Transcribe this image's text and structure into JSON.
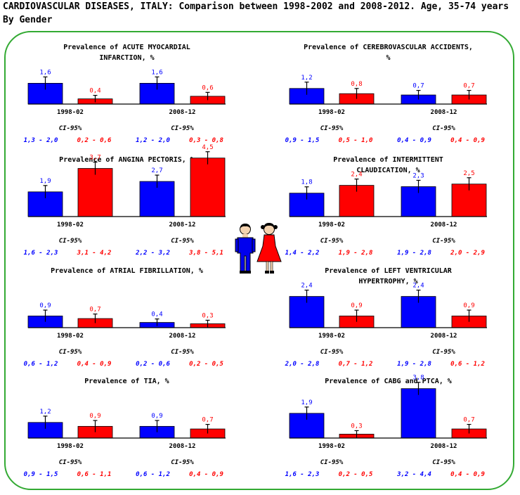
{
  "header": {
    "title": "CARDIOVASCULAR DISEASES, ITALY: Comparison between 1998-2002 and 2008-2012. Age, 35-74 years",
    "subtitle": "By Gender"
  },
  "colors": {
    "men": "#0000ff",
    "women": "#ff0000",
    "frame": "#33aa33"
  },
  "icons": [
    "boy-figure-icon",
    "girl-figure-icon"
  ],
  "chart_data": [
    {
      "type": "bar",
      "title": [
        "Prevalence of ACUTE MYOCARDIAL",
        "INFARCTION, %"
      ],
      "categories": [
        "1998-02",
        "2008-12"
      ],
      "series": [
        {
          "values": [
            1.6,
            1.6
          ],
          "labels": [
            "1,6",
            "1,6"
          ]
        },
        {
          "values": [
            0.4,
            0.6
          ],
          "labels": [
            "0,4",
            "0,6"
          ]
        }
      ],
      "ci_label": "CI-95%",
      "ci": [
        [
          "1,3 - 2,0",
          "0,2 - 0,6"
        ],
        [
          "1,2 - 2,0",
          "0,3 - 0,8"
        ]
      ]
    },
    {
      "type": "bar",
      "title": [
        "Prevalence of CEREBROVASCULAR ACCIDENTS,",
        "%"
      ],
      "categories": [
        "1998-02",
        "2008-12"
      ],
      "series": [
        {
          "values": [
            1.2,
            0.7
          ],
          "labels": [
            "1,2",
            "0,7"
          ]
        },
        {
          "values": [
            0.8,
            0.7
          ],
          "labels": [
            "0,8",
            "0,7"
          ]
        }
      ],
      "ci_label": "CI-95%",
      "ci": [
        [
          "0,9 - 1,5",
          "0,5 - 1,0"
        ],
        [
          "0,4 - 0,9",
          "0,4 - 0,9"
        ]
      ]
    },
    {
      "type": "bar",
      "title": [
        "Prevalence of ANGINA PECTORIS, %"
      ],
      "categories": [
        "1998-02",
        "2008-12"
      ],
      "series": [
        {
          "values": [
            1.9,
            2.7
          ],
          "labels": [
            "1,9",
            "2,7"
          ]
        },
        {
          "values": [
            3.7,
            4.5
          ],
          "labels": [
            "3,7",
            "4,5"
          ]
        }
      ],
      "ci_label": "CI-95%",
      "ci": [
        [
          "1,6 - 2,3",
          "3,1 - 4,2"
        ],
        [
          "2,2 - 3,2",
          "3,8 - 5,1"
        ]
      ]
    },
    {
      "type": "bar",
      "title": [
        "Prevalence of INTERMITTENT",
        "CLAUDICATION, %"
      ],
      "categories": [
        "1998-02",
        "2008-12"
      ],
      "series": [
        {
          "values": [
            1.8,
            2.3
          ],
          "labels": [
            "1,8",
            "2,3"
          ]
        },
        {
          "values": [
            2.4,
            2.5
          ],
          "labels": [
            "2,4",
            "2,5"
          ]
        }
      ],
      "ci_label": "CI-95%",
      "ci": [
        [
          "1,4 - 2,2",
          "1,9 - 2,8"
        ],
        [
          "1,9 - 2,8",
          "2,0 - 2,9"
        ]
      ]
    },
    {
      "type": "bar",
      "title": [
        "Prevalence of ATRIAL FIBRILLATION, %"
      ],
      "categories": [
        "1998-02",
        "2008-12"
      ],
      "series": [
        {
          "values": [
            0.9,
            0.4
          ],
          "labels": [
            "0,9",
            "0,4"
          ]
        },
        {
          "values": [
            0.7,
            0.3
          ],
          "labels": [
            "0,7",
            "0,3"
          ]
        }
      ],
      "ci_label": "CI-95%",
      "ci": [
        [
          "0,6 - 1,2",
          "0,4 - 0,9"
        ],
        [
          "0,2 - 0,6",
          "0,2 - 0,5"
        ]
      ]
    },
    {
      "type": "bar",
      "title": [
        "Prevalence of LEFT VENTRICULAR",
        "HYPERTROPHY, %"
      ],
      "categories": [
        "1998-02",
        "2008-12"
      ],
      "series": [
        {
          "values": [
            2.4,
            2.4
          ],
          "labels": [
            "2,4",
            "2,4"
          ]
        },
        {
          "values": [
            0.9,
            0.9
          ],
          "labels": [
            "0,9",
            "0,9"
          ]
        }
      ],
      "ci_label": "CI-95%",
      "ci": [
        [
          "2,0 - 2,8",
          "0,7 - 1,2"
        ],
        [
          "1,9 - 2,8",
          "0,6 - 1,2"
        ]
      ]
    },
    {
      "type": "bar",
      "title": [
        "Prevalence of TIA, %"
      ],
      "categories": [
        "1998-02",
        "2008-12"
      ],
      "series": [
        {
          "values": [
            1.2,
            0.9
          ],
          "labels": [
            "1,2",
            "0,9"
          ]
        },
        {
          "values": [
            0.9,
            0.7
          ],
          "labels": [
            "0,9",
            "0,7"
          ]
        }
      ],
      "ci_label": "CI-95%",
      "ci": [
        [
          "0,9 - 1,5",
          "0,6 - 1,1"
        ],
        [
          "0,6 - 1,2",
          "0,4 - 0,9"
        ]
      ]
    },
    {
      "type": "bar",
      "title": [
        "Prevalence of CABG and PTCA, %"
      ],
      "categories": [
        "1998-02",
        "2008-12"
      ],
      "series": [
        {
          "values": [
            1.9,
            3.8
          ],
          "labels": [
            "1,9",
            "3,8"
          ]
        },
        {
          "values": [
            0.3,
            0.7
          ],
          "labels": [
            "0,3",
            "0,7"
          ]
        }
      ],
      "ci_label": "CI-95%",
      "ci": [
        [
          "1,6 - 2,3",
          "0,2 - 0,5"
        ],
        [
          "3,2 - 4,4",
          "0,4 - 0,9"
        ]
      ]
    }
  ]
}
